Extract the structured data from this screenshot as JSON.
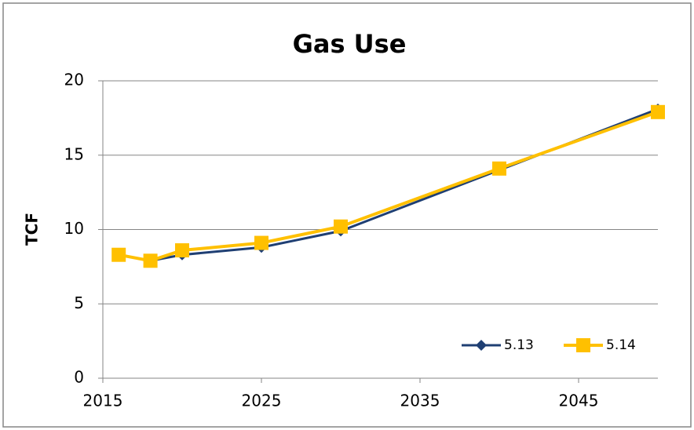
{
  "chart_data": {
    "type": "line",
    "title": "Gas Use",
    "ylabel": "TCF",
    "x": [
      2016,
      2018,
      2020,
      2025,
      2030,
      2040,
      2050
    ],
    "series": [
      {
        "name": "5.13",
        "color": "#1f3f73",
        "marker": "diamond",
        "values": [
          8.3,
          7.9,
          8.3,
          8.8,
          9.9,
          14.0,
          18.1
        ]
      },
      {
        "name": "5.14",
        "color": "#ffc000",
        "marker": "square",
        "values": [
          8.3,
          7.9,
          8.6,
          9.1,
          10.2,
          14.1,
          17.9
        ]
      }
    ],
    "xlim": [
      2015,
      2050
    ],
    "xticks": [
      2015,
      2025,
      2035,
      2045
    ],
    "ylim": [
      0,
      20
    ],
    "yticks": [
      0,
      5,
      10,
      15,
      20
    ],
    "grid": true,
    "legend": "lower right"
  }
}
